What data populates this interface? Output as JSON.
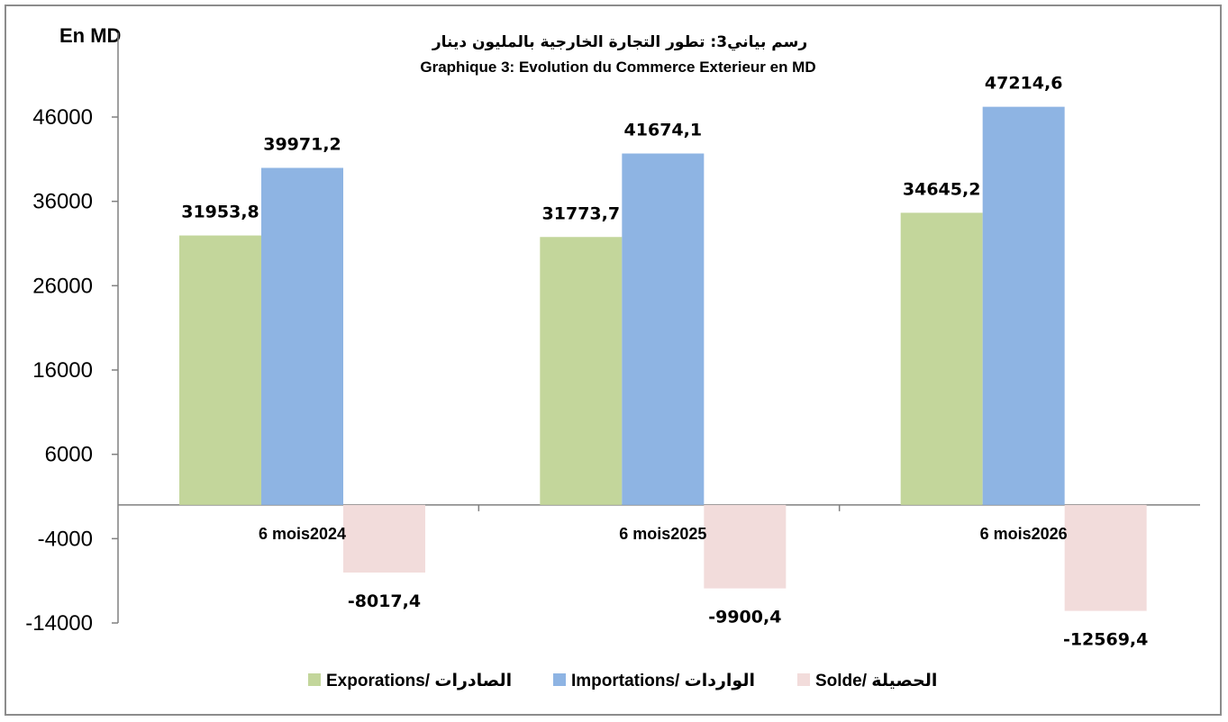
{
  "chart_data": {
    "type": "bar",
    "unit_label": "En MD",
    "title_ar": "رسم بياني3: تطور التجارة الخارجية بالمليون دينار",
    "title": "Graphique 3: Evolution du Commerce Exterieur en MD",
    "categories": [
      "6 mois2024",
      "6 mois2025",
      "6 mois2026"
    ],
    "series": [
      {
        "name": "Exporations/  الصادرات",
        "color": "#c3d69b",
        "values": [
          31953.8,
          31773.7,
          34645.2
        ],
        "labels": [
          "31953,8",
          "31773,7",
          "34645,2"
        ]
      },
      {
        "name": "Importations/ الواردات",
        "color": "#8eb4e3",
        "values": [
          39971.2,
          41674.1,
          47214.6
        ],
        "labels": [
          "39971,2",
          "41674,1",
          "47214,6"
        ]
      },
      {
        "name": "Solde/ الحصيلة",
        "color": "#f2dcdb",
        "values": [
          -8017.4,
          -9900.4,
          -12569.4
        ],
        "labels": [
          "-8017,4",
          "-9900,4",
          "-12569,4"
        ]
      }
    ],
    "ylim": [
      -14000,
      56000
    ],
    "yticks": [
      -14000,
      -4000,
      6000,
      16000,
      26000,
      36000,
      46000
    ],
    "grid": false,
    "legend_position": "bottom"
  }
}
